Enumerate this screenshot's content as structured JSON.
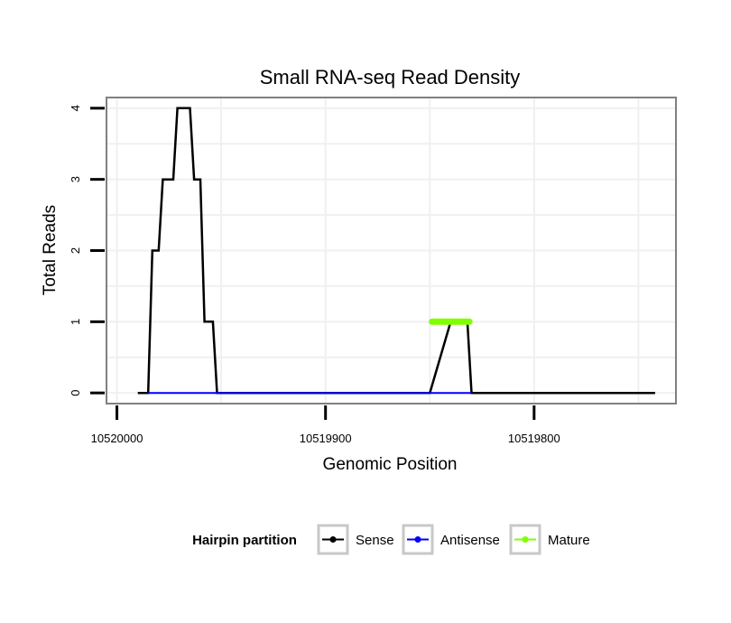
{
  "chart_data": {
    "type": "line",
    "title": "Small RNA-seq Read Density",
    "xlabel": "Genomic Position",
    "ylabel": "Total Reads",
    "x_reversed": true,
    "xlim": [
      10520005,
      10519732
    ],
    "ylim": [
      -0.15,
      4.15
    ],
    "x_ticks": [
      10520000,
      10519900,
      10519800
    ],
    "x_tick_labels": [
      "10520000",
      "10519900",
      "10519800"
    ],
    "y_ticks": [
      0,
      1,
      2,
      3,
      4
    ],
    "y_tick_labels": [
      "0",
      "1",
      "2",
      "3",
      "4"
    ],
    "grid": true,
    "series": [
      {
        "name": "Sense",
        "color": "#000000",
        "x": [
          10519990,
          10519985,
          10519983,
          10519980,
          10519978,
          10519973,
          10519971,
          10519965,
          10519963,
          10519960,
          10519958,
          10519954,
          10519952,
          10519850,
          10519840,
          10519832,
          10519830,
          10519800,
          10519780,
          10519760,
          10519742
        ],
        "y": [
          0,
          0,
          2,
          2,
          3,
          3,
          4,
          4,
          3,
          3,
          1,
          1,
          0,
          0,
          1,
          1,
          0,
          0,
          0,
          0,
          0
        ]
      },
      {
        "name": "Antisense",
        "color": "#0000ff",
        "x": [
          10519985,
          10519952,
          10519850,
          10519830
        ],
        "y": [
          0,
          0,
          0,
          0
        ]
      },
      {
        "name": "Mature",
        "color": "#7fff00",
        "x": [
          10519849,
          10519831
        ],
        "y": [
          1,
          1
        ]
      }
    ],
    "legend": {
      "title": "Hairpin partition",
      "entries": [
        "Sense",
        "Antisense",
        "Mature"
      ],
      "placement": "bottom"
    }
  }
}
